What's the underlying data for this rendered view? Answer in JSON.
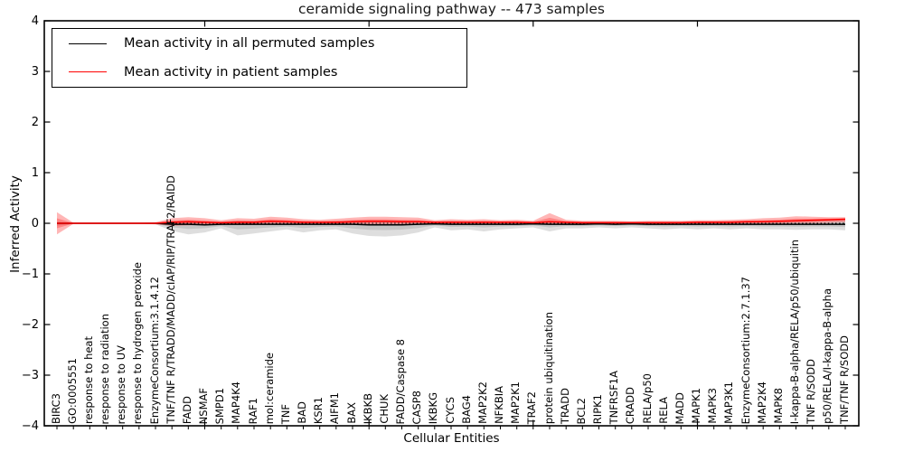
{
  "figure": {
    "title": "ceramide signaling pathway -- 473 samples",
    "xlabel": "Cellular Entities",
    "ylabel": "Inferred Activity"
  },
  "legend": {
    "items": [
      {
        "label": "Mean activity in all permuted samples",
        "color": "#000000"
      },
      {
        "label": "Mean activity in patient samples",
        "color": "#ff0000"
      }
    ]
  },
  "chart_data": {
    "type": "line",
    "title": "ceramide signaling pathway -- 473 samples",
    "xlabel": "Cellular Entities",
    "ylabel": "Inferred Activity",
    "ylim": [
      -4,
      4
    ],
    "yticks": [
      4,
      3,
      2,
      1,
      0,
      -1,
      -2,
      -3,
      -4
    ],
    "ytick_labels": [
      "4",
      "3",
      "2",
      "1",
      "0",
      "−1",
      "−2",
      "−3",
      "−4"
    ],
    "grid": false,
    "legend_position": "upper left",
    "zero_line": {
      "y": 0,
      "style": "dashed",
      "color": "#000000"
    },
    "categories": [
      "BIRC3",
      "GO:0005551",
      "response to heat",
      "response to radiation",
      "response to UV",
      "response to hydrogen peroxide",
      "EnzymeConsortium:3.1.4.12",
      "TNF/TNF R/TRADD/MADD/cIAP/RIP/TRAF2/RAIDD",
      "FADD",
      "NSMAF",
      "SMPD1",
      "MAP4K4",
      "RAF1",
      "mol:ceramide",
      "TNF",
      "BAD",
      "KSR1",
      "AIFM1",
      "BAX",
      "IKBKB",
      "CHUK",
      "FADD/Caspase 8",
      "CASP8",
      "IKBKG",
      "CYCS",
      "BAG4",
      "MAP2K2",
      "NFKBIA",
      "MAP2K1",
      "TRAF2",
      "protein ubiquitination",
      "TRADD",
      "BCL2",
      "RIPK1",
      "TNFRSF1A",
      "CRADD",
      "RELA/p50",
      "RELA",
      "MADD",
      "MAPK1",
      "MAPK3",
      "MAP3K1",
      "EnzymeConsortium:2.7.1.37",
      "MAP2K4",
      "MAPK8",
      "I-kappa-B-alpha/RELA/p50/ubiquitin",
      "TNF R/SODD",
      "p50/RELA/I-kappa-B-alpha",
      "TNF/TNF R/SODD"
    ],
    "series": [
      {
        "name": "Mean activity in all permuted samples",
        "color": "#000000",
        "band_color": "#888888",
        "values": [
          0,
          0,
          0,
          0,
          0,
          0,
          0,
          -0.02,
          -0.02,
          -0.03,
          -0.02,
          -0.02,
          -0.02,
          -0.02,
          -0.02,
          -0.02,
          -0.02,
          -0.02,
          -0.02,
          -0.03,
          -0.03,
          -0.03,
          -0.02,
          -0.01,
          -0.02,
          -0.02,
          -0.02,
          -0.02,
          -0.02,
          -0.01,
          -0.02,
          -0.02,
          -0.02,
          -0.01,
          -0.02,
          -0.01,
          -0.02,
          -0.02,
          -0.02,
          -0.02,
          -0.02,
          -0.02,
          -0.02,
          -0.02,
          -0.02,
          -0.02,
          -0.02,
          -0.02,
          -0.02
        ],
        "band_hi": [
          0.03,
          0.01,
          0.01,
          0.01,
          0.01,
          0.01,
          0.02,
          0.04,
          0.05,
          0.04,
          0.03,
          0.05,
          0.04,
          0.04,
          0.04,
          0.04,
          0.03,
          0.04,
          0.05,
          0.05,
          0.05,
          0.05,
          0.04,
          0.03,
          0.04,
          0.03,
          0.04,
          0.03,
          0.03,
          0.03,
          0.04,
          0.03,
          0.03,
          0.03,
          0.03,
          0.03,
          0.03,
          0.03,
          0.03,
          0.04,
          0.04,
          0.04,
          0.04,
          0.05,
          0.05,
          0.06,
          0.06,
          0.07,
          0.1
        ],
        "band_lo": [
          -0.05,
          -0.01,
          -0.01,
          -0.01,
          -0.01,
          -0.01,
          -0.02,
          -0.15,
          -0.22,
          -0.18,
          -0.1,
          -0.24,
          -0.2,
          -0.16,
          -0.12,
          -0.18,
          -0.14,
          -0.12,
          -0.2,
          -0.25,
          -0.26,
          -0.24,
          -0.18,
          -0.08,
          -0.14,
          -0.12,
          -0.16,
          -0.12,
          -0.1,
          -0.08,
          -0.16,
          -0.1,
          -0.1,
          -0.08,
          -0.1,
          -0.08,
          -0.1,
          -0.12,
          -0.1,
          -0.12,
          -0.1,
          -0.12,
          -0.1,
          -0.12,
          -0.12,
          -0.13,
          -0.12,
          -0.12,
          -0.14
        ]
      },
      {
        "name": "Mean activity in patient samples",
        "color": "#ff0000",
        "band_color": "#ff2020",
        "values": [
          0,
          0,
          0,
          0,
          0,
          0,
          0,
          0.02,
          0.03,
          0.02,
          0.01,
          0.02,
          0.02,
          0.04,
          0.03,
          0.02,
          0.02,
          0.02,
          0.03,
          0.04,
          0.04,
          0.03,
          0.03,
          0.02,
          0.02,
          0.02,
          0.02,
          0.02,
          0.02,
          0.01,
          0.03,
          0.02,
          0.01,
          0.01,
          0.01,
          0.01,
          0.01,
          0.01,
          0.01,
          0.02,
          0.02,
          0.02,
          0.03,
          0.03,
          0.04,
          0.05,
          0.06,
          0.07,
          0.08
        ],
        "band_hi": [
          0.22,
          0.01,
          0.01,
          0.01,
          0.01,
          0.01,
          0.02,
          0.1,
          0.12,
          0.1,
          0.06,
          0.1,
          0.09,
          0.13,
          0.11,
          0.08,
          0.07,
          0.09,
          0.11,
          0.13,
          0.13,
          0.12,
          0.11,
          0.06,
          0.08,
          0.07,
          0.08,
          0.06,
          0.07,
          0.05,
          0.2,
          0.07,
          0.05,
          0.05,
          0.05,
          0.04,
          0.05,
          0.05,
          0.05,
          0.06,
          0.06,
          0.07,
          0.08,
          0.1,
          0.11,
          0.14,
          0.13,
          0.12,
          0.12
        ],
        "band_lo": [
          -0.22,
          -0.01,
          -0.01,
          -0.01,
          -0.01,
          -0.01,
          -0.02,
          -0.05,
          -0.04,
          -0.03,
          -0.02,
          -0.03,
          -0.03,
          -0.02,
          -0.02,
          -0.02,
          -0.02,
          -0.02,
          -0.03,
          -0.03,
          -0.03,
          -0.03,
          -0.02,
          -0.02,
          -0.02,
          -0.02,
          -0.02,
          -0.02,
          -0.02,
          -0.02,
          -0.02,
          -0.02,
          -0.02,
          -0.02,
          -0.02,
          -0.02,
          -0.02,
          -0.02,
          -0.02,
          -0.02,
          -0.02,
          -0.02,
          -0.02,
          -0.01,
          -0.01,
          0.0,
          0.0,
          0.01,
          0.02
        ]
      }
    ]
  }
}
